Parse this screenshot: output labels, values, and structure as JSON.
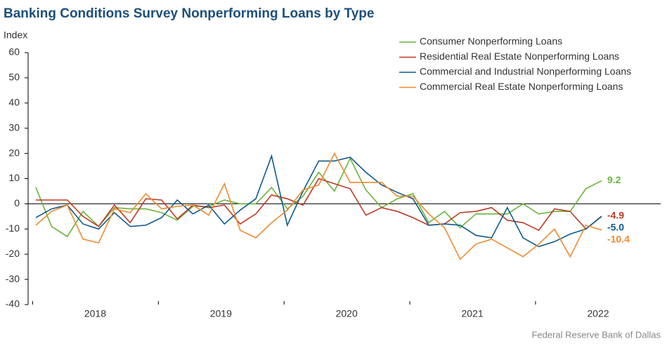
{
  "chart_data": {
    "type": "line",
    "title": "Banking Conditions Survey Nonperforming Loans by Type",
    "y_label": "Index",
    "source": "Federal Reserve Bank of Dallas",
    "categories": [
      null,
      null,
      null,
      null,
      "2018",
      null,
      null,
      null,
      null,
      null,
      null,
      null,
      "2019",
      null,
      null,
      null,
      null,
      null,
      null,
      null,
      "2020",
      null,
      null,
      null,
      null,
      null,
      null,
      null,
      "2021",
      null,
      null,
      null,
      null,
      null,
      null,
      null,
      "2022"
    ],
    "ylim": [
      -40,
      60
    ],
    "yticks": [
      -40,
      -30,
      -20,
      -10,
      0,
      10,
      20,
      30,
      40,
      50,
      60
    ],
    "grid": false,
    "legend": "top-right",
    "series": [
      {
        "name": "Consumer Nonperforming Loans",
        "color": "#6ab43e",
        "values": [
          6.5,
          -9,
          -13,
          -3,
          -9,
          -1.5,
          -2,
          -2,
          -3.5,
          -6.5,
          -1,
          -1,
          1.5,
          0,
          0,
          6.5,
          -2,
          3,
          12.5,
          5,
          18,
          5.5,
          -1.5,
          2,
          4,
          -7.5,
          -3,
          -9.5,
          -4,
          -4,
          -4,
          0,
          -4,
          -3,
          -3,
          6,
          9.2
        ]
      },
      {
        "name": "Residential Real Estate Nonperforming Loans",
        "color": "#be3a26",
        "values": [
          1.5,
          1.5,
          1.5,
          -5,
          -9,
          -0.5,
          -7.5,
          2,
          1.5,
          -6,
          -0.5,
          -1.5,
          -0.5,
          -8,
          -4,
          3.5,
          2,
          -0.5,
          10,
          8,
          6,
          -4.5,
          -1.5,
          -3,
          -5.5,
          -8.5,
          -8,
          -3.5,
          -3,
          -1.5,
          -6.5,
          -7.5,
          -10.5,
          -2,
          -3,
          -10,
          -4.9
        ]
      },
      {
        "name": "Commercial and Industrial Nonperforming Loans",
        "color": "#0f5a8e",
        "values": [
          -5.5,
          -2,
          -0.5,
          -8,
          -10,
          -3.5,
          -9,
          -8.5,
          -5.5,
          1.5,
          -4,
          -0.5,
          -8,
          -2.5,
          2,
          19,
          -8.5,
          5,
          17,
          17,
          18.5,
          12.5,
          7.5,
          4.5,
          2,
          -8.5,
          -8,
          -8.5,
          -12.5,
          -13.5,
          -1.5,
          -13.5,
          -17,
          -15,
          -12,
          -10,
          -5
        ],
        "value_labels": [
          null,
          null,
          null,
          null,
          null,
          null,
          null,
          null,
          null,
          null,
          null,
          null,
          null,
          null,
          null,
          null,
          null,
          null,
          null,
          null,
          null,
          null,
          null,
          null,
          null,
          null,
          null,
          null,
          null,
          null,
          null,
          null,
          null,
          null,
          null,
          null,
          "-5.0"
        ]
      },
      {
        "name": "Commercial Real Estate Nonperforming Loans",
        "color": "#ef8a2e",
        "values": [
          -8.5,
          -3,
          -0.5,
          -14,
          -15.5,
          -2,
          -3.5,
          4,
          -2,
          -1,
          -0.5,
          -4.5,
          8,
          -10.5,
          -13.5,
          -7.5,
          -2.5,
          5.5,
          7.5,
          20,
          8.5,
          8.5,
          8.5,
          3,
          3,
          -4,
          -9.5,
          -22,
          -16,
          -14,
          -17.5,
          -21,
          -16,
          -10,
          -21,
          -8.5,
          -10.4
        ]
      }
    ]
  }
}
